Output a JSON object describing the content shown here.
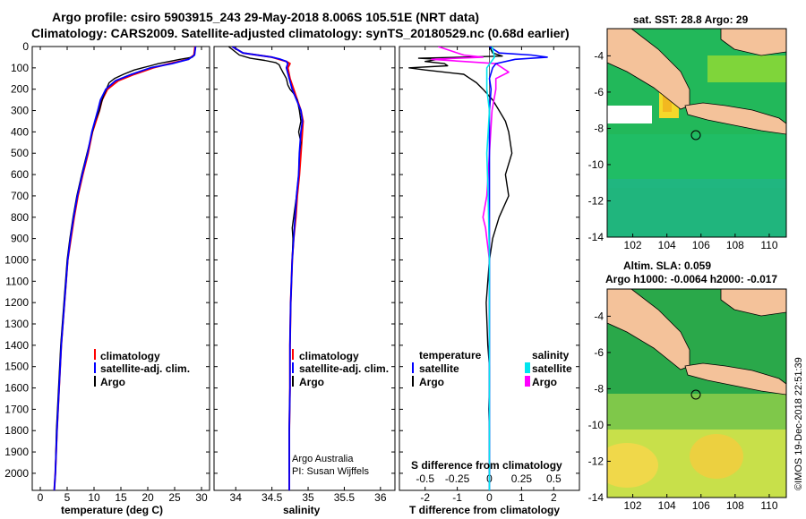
{
  "title": {
    "line1": "Argo profile: csiro 5903915_243 29-May-2018 8.006S 105.51E (NRT data)",
    "line2": "Climatology: CARS2009. Satellite-adjusted climatology: synTS_20180529.nc (0.68d earlier)"
  },
  "colors": {
    "climatology": "#ff0000",
    "satellite": "#0000ff",
    "argo": "#000000",
    "sat_salinity": "#00e5ee",
    "argo_salinity": "#ff00ff"
  },
  "chart_data": [
    {
      "type": "line",
      "name": "temperature",
      "xlabel": "temperature (deg C)",
      "ylabel": "",
      "xlim": [
        -1.5,
        31.5
      ],
      "ylim": [
        2080,
        0
      ],
      "xticks": [
        "0",
        "5",
        "10",
        "15",
        "20",
        "25",
        "30"
      ],
      "yticks": [
        "0",
        "100",
        "200",
        "300",
        "400",
        "500",
        "600",
        "700",
        "800",
        "900",
        "1000",
        "1100",
        "1200",
        "1300",
        "1400",
        "1500",
        "1600",
        "1700",
        "1800",
        "1900",
        "2000"
      ],
      "legend": [
        "climatology",
        "satellite-adj. clim.",
        "Argo"
      ],
      "series": [
        {
          "name": "climatology",
          "depth": [
            0,
            40,
            60,
            80,
            100,
            130,
            160,
            200,
            250,
            300,
            400,
            500,
            600,
            700,
            800,
            900,
            1000,
            1200,
            1400,
            1600,
            1800,
            2000,
            2080
          ],
          "values": [
            28.8,
            28.6,
            27.5,
            24,
            21,
            17.5,
            14.5,
            12.5,
            11.5,
            11,
            9.7,
            8.9,
            7.9,
            7,
            6.3,
            5.7,
            5.1,
            4.5,
            3.9,
            3.5,
            3.1,
            2.8,
            2.6
          ]
        },
        {
          "name": "satellite-adj. clim.",
          "depth": [
            0,
            40,
            60,
            80,
            100,
            130,
            160,
            200,
            250,
            300,
            400,
            500,
            600,
            700,
            800,
            900,
            1000,
            1200,
            1400,
            1600,
            1800,
            2000,
            2080
          ],
          "values": [
            28.9,
            28.7,
            27.6,
            24.5,
            20.5,
            17,
            14,
            12.2,
            11.2,
            10.7,
            9.6,
            8.8,
            7.8,
            6.9,
            6.2,
            5.6,
            5.1,
            4.5,
            3.9,
            3.5,
            3.1,
            2.8,
            2.6
          ]
        },
        {
          "name": "Argo",
          "depth": [
            0,
            40,
            50,
            60,
            70,
            80,
            90,
            100,
            110,
            130,
            150,
            170,
            200,
            230,
            260,
            300,
            350,
            400,
            500,
            600,
            700,
            800,
            900,
            1000,
            1200,
            1400,
            1600,
            1800,
            2000
          ],
          "values": [
            28.9,
            28.7,
            28.3,
            26,
            24,
            22,
            20.5,
            19,
            17.5,
            15.5,
            13.8,
            12.8,
            12.3,
            11.8,
            11.4,
            11,
            10.2,
            9.7,
            8.7,
            7.7,
            6.8,
            6.1,
            5.5,
            5,
            4.4,
            3.8,
            3.4,
            3,
            2.8
          ]
        }
      ]
    },
    {
      "type": "line",
      "name": "salinity",
      "xlabel": "salinity",
      "xlim": [
        33.7,
        36.2
      ],
      "ylim": [
        2080,
        0
      ],
      "xticks": [
        "34",
        "34.5",
        "35",
        "35.5",
        "36"
      ],
      "legend": [
        "climatology",
        "satellite-adj. clim.",
        "Argo"
      ],
      "credit": [
        "Argo Australia",
        "PI: Susan Wijffels"
      ],
      "series": [
        {
          "name": "climatology",
          "depth": [
            0,
            30,
            50,
            60,
            70,
            80,
            100,
            150,
            200,
            250,
            300,
            350,
            400,
            500,
            600,
            700,
            800,
            900,
            1000,
            1200,
            1400,
            1600,
            1800,
            2000,
            2080
          ],
          "values": [
            33.95,
            34.1,
            34.5,
            34.6,
            34.7,
            34.75,
            34.72,
            34.75,
            34.8,
            34.85,
            34.9,
            34.93,
            34.92,
            34.9,
            34.88,
            34.85,
            34.83,
            34.8,
            34.78,
            34.76,
            34.75,
            34.75,
            34.74,
            34.74,
            34.74
          ]
        },
        {
          "name": "satellite-adj. clim.",
          "depth": [
            0,
            30,
            50,
            60,
            70,
            80,
            100,
            150,
            200,
            250,
            300,
            350,
            400,
            500,
            600,
            700,
            800,
            900,
            1000,
            1200,
            1400,
            1600,
            1800,
            2000,
            2080
          ],
          "values": [
            33.95,
            34.1,
            34.5,
            34.62,
            34.7,
            34.72,
            34.7,
            34.74,
            34.78,
            34.84,
            34.9,
            34.92,
            34.9,
            34.88,
            34.87,
            34.84,
            34.82,
            34.8,
            34.78,
            34.76,
            34.75,
            34.75,
            34.74,
            34.74,
            34.74
          ]
        },
        {
          "name": "Argo",
          "depth": [
            0,
            40,
            55,
            65,
            75,
            85,
            100,
            120,
            150,
            180,
            200,
            220,
            250,
            300,
            350,
            400,
            450,
            500,
            600,
            700,
            800,
            850,
            900,
            1000,
            1200,
            1400,
            1600,
            1800,
            2000
          ],
          "values": [
            33.9,
            34.05,
            34.2,
            34.4,
            34.55,
            34.6,
            34.62,
            34.65,
            34.7,
            34.72,
            34.75,
            34.8,
            34.85,
            34.88,
            34.9,
            34.87,
            34.9,
            34.88,
            34.87,
            34.84,
            34.8,
            34.78,
            34.79,
            34.78,
            34.76,
            34.75,
            34.75,
            34.74,
            34.74
          ]
        }
      ]
    },
    {
      "type": "line",
      "name": "difference-from-climatology",
      "xlabel": "T difference from climatology",
      "xlabel_top": "S difference from climatology",
      "xlim": [
        -2.8,
        2.8
      ],
      "ylim": [
        2080,
        0
      ],
      "xticks": [
        "-2",
        "-1",
        "0",
        "1",
        "2"
      ],
      "xticks_s": [
        "-0.5",
        "-0.25",
        "0",
        "0.25",
        "0.5"
      ],
      "legend_left_header": "temperature",
      "legend_right_header": "salinity",
      "legend_left": [
        "satellite",
        "Argo"
      ],
      "legend_right": [
        "satellite",
        "Argo"
      ],
      "series": [
        {
          "name": "temperature satellite",
          "depth": [
            0,
            30,
            40,
            50,
            60,
            80,
            100,
            150,
            200,
            300,
            500,
            700,
            1000,
            1500,
            2000,
            2080
          ],
          "values": [
            0,
            0.3,
            1.3,
            1.8,
            0.8,
            0.2,
            0.1,
            0,
            0.05,
            0,
            0,
            0,
            0,
            0,
            0,
            0
          ]
        },
        {
          "name": "temperature Argo",
          "depth": [
            0,
            30,
            45,
            55,
            60,
            70,
            80,
            90,
            100,
            110,
            130,
            150,
            170,
            200,
            250,
            300,
            350,
            400,
            500,
            600,
            700,
            800,
            900,
            1000,
            1200,
            1400,
            1500,
            1600,
            1700,
            1800,
            1900,
            2000
          ],
          "values": [
            0,
            0.1,
            0.4,
            -2.2,
            -1.6,
            -2,
            -1.4,
            -1.3,
            -2.5,
            -2,
            -0.8,
            -0.6,
            -0.4,
            -0.2,
            0.1,
            0.3,
            0.5,
            0.6,
            0.7,
            0.5,
            0.6,
            0.3,
            0.1,
            0,
            -0.1,
            -0.05,
            0,
            0,
            -0.02,
            0,
            0,
            0
          ]
        },
        {
          "name": "salinity satellite",
          "depth": [
            0,
            50,
            100,
            200,
            300,
            400,
            500,
            700,
            1000,
            1500,
            2000,
            2080
          ],
          "values": [
            0.02,
            0.04,
            -0.02,
            -0.02,
            0,
            -0.01,
            -0.02,
            -0.01,
            0,
            0,
            0,
            0
          ]
        },
        {
          "name": "salinity Argo",
          "depth": [
            0,
            20,
            40,
            50,
            60,
            70,
            80,
            100,
            120,
            150,
            200,
            300,
            500,
            700,
            800,
            850,
            900,
            1000,
            1500,
            2000
          ],
          "values": [
            -0.4,
            -0.3,
            -0.2,
            -0.05,
            -0.45,
            -0.2,
            0.05,
            0.1,
            0.15,
            0.05,
            0.05,
            0.02,
            0,
            -0.02,
            -0.05,
            -0.03,
            -0.02,
            0,
            0,
            0
          ]
        }
      ]
    },
    {
      "type": "heatmap",
      "name": "sat-sst-map",
      "title": "sat. SST: 28.8 Argo: 29",
      "xlim": [
        100.5,
        111
      ],
      "ylim": [
        -14,
        -2.5
      ],
      "xticks": [
        "102",
        "104",
        "106",
        "108",
        "110"
      ],
      "yticks": [
        "-4",
        "-6",
        "-8",
        "-10",
        "-12",
        "-14"
      ],
      "marker": {
        "lon": 105.51,
        "lat": -8.006
      }
    },
    {
      "type": "heatmap",
      "name": "altimetry-sla-map",
      "title": "Altim. SLA: 0.059",
      "subtitle": "Argo h1000: -0.0064 h2000: -0.017",
      "xlim": [
        100.5,
        111
      ],
      "ylim": [
        -14,
        -2.5
      ],
      "xticks": [
        "102",
        "104",
        "106",
        "108",
        "110"
      ],
      "yticks": [
        "-4",
        "-6",
        "-8",
        "-10",
        "-12",
        "-14"
      ],
      "marker": {
        "lon": 105.51,
        "lat": -8.006
      }
    }
  ],
  "footer": {
    "credit": "©IMOS 19-Dec-2018 22:51:39"
  }
}
